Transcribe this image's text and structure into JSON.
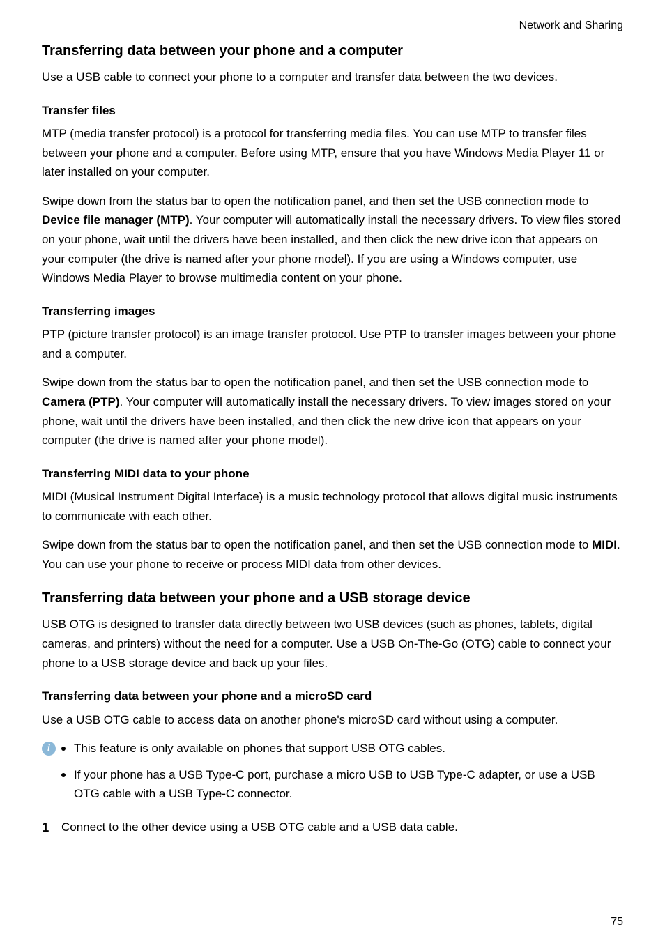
{
  "header": {
    "breadcrumb": "Network and Sharing"
  },
  "colors": {
    "text": "#000000",
    "background": "#ffffff",
    "note_icon_bg": "#8bb8d8",
    "note_icon_fg": "#ffffff"
  },
  "sections": {
    "s1": {
      "title": "Transferring data between your phone and a computer",
      "intro": "Use a USB cable to connect your phone to a computer and transfer data between the two devices.",
      "sub1": {
        "title": "Transfer files",
        "p1": "MTP (media transfer protocol) is a protocol for transferring media files. You can use MTP to transfer files between your phone and a computer. Before using MTP, ensure that you have Windows Media Player 11 or later installed on your computer.",
        "p2a": "Swipe down from the status bar to open the notification panel, and then set the USB connection mode to ",
        "p2bold": "Device file manager (MTP)",
        "p2b": ". Your computer will automatically install the necessary drivers. To view files stored on your phone, wait until the drivers have been installed, and then click the new drive icon that appears on your computer (the drive is named after your phone model). If you are using a Windows computer, use Windows Media Player to browse multimedia content on your phone."
      },
      "sub2": {
        "title": "Transferring images",
        "p1": "PTP (picture transfer protocol) is an image transfer protocol. Use PTP to transfer images between your phone and a computer.",
        "p2a": "Swipe down from the status bar to open the notification panel, and then set the USB connection mode to ",
        "p2bold": "Camera (PTP)",
        "p2b": ". Your computer will automatically install the necessary drivers. To view images stored on your phone, wait until the drivers have been installed, and then click the new drive icon that appears on your computer (the drive is named after your phone model)."
      },
      "sub3": {
        "title": "Transferring MIDI data to your phone",
        "p1": "MIDI (Musical Instrument Digital Interface) is a music technology protocol that allows digital music instruments to communicate with each other.",
        "p2a": "Swipe down from the status bar to open the notification panel, and then set the USB connection mode to ",
        "p2bold": "MIDI",
        "p2b": ". You can use your phone to receive or process MIDI data from other devices."
      }
    },
    "s2": {
      "title": "Transferring data between your phone and a USB storage device",
      "intro": "USB OTG is designed to transfer data directly between two USB devices (such as phones, tablets, digital cameras, and printers) without the need for a computer. Use a USB On-The-Go (OTG) cable to connect your phone to a USB storage device and back up your files.",
      "sub1": {
        "title": "Transferring data between your phone and a microSD card",
        "p1": "Use a USB OTG cable to access data on another phone's microSD card without using a computer.",
        "notes": {
          "icon": "i",
          "items": {
            "0": "This feature is only available on phones that support USB OTG cables.",
            "1": "If your phone has a USB Type-C port, purchase a micro USB to USB Type-C adapter, or use a USB OTG cable with a USB Type-C connector."
          }
        },
        "step1": {
          "num": "1",
          "text": "Connect to the other device using a USB OTG cable and a USB data cable."
        }
      }
    }
  },
  "page_number": "75"
}
